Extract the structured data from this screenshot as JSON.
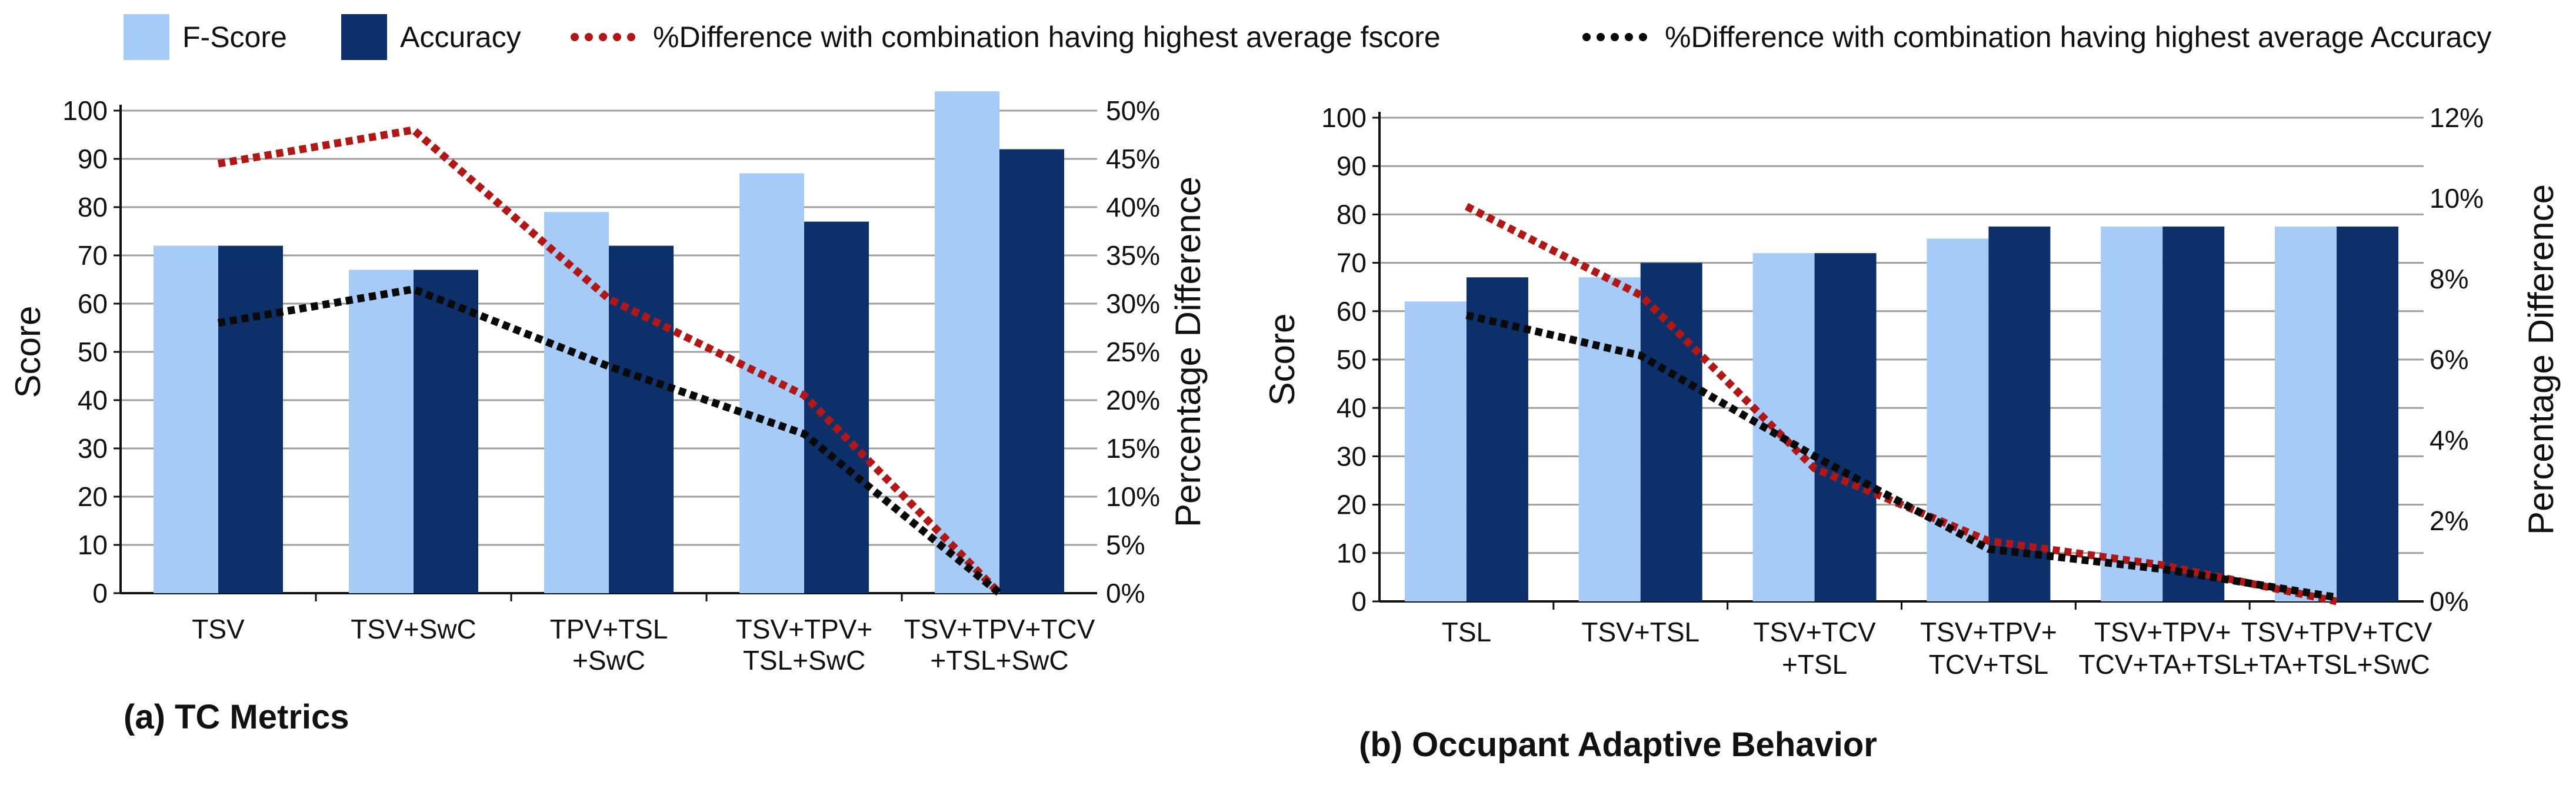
{
  "legend": {
    "fscore": "F-Score",
    "accuracy": "Accuracy",
    "diff_fscore": "%Difference with combination having highest average fscore",
    "diff_accuracy": "%Difference with combination having highest average Accuracy"
  },
  "colors": {
    "fscore": "#a6cbf6",
    "accuracy": "#0d306b",
    "diff_fscore": "#b01818",
    "diff_accuracy": "#0a0a0a",
    "grid": "#9e9e9e"
  },
  "chart_data": [
    {
      "type": "bar",
      "caption": "(a) TC Metrics",
      "ylabel": "Score",
      "y2label": "Percentage Difference",
      "ylim": [
        0,
        100
      ],
      "yticks": [
        "0",
        "10",
        "20",
        "30",
        "40",
        "50",
        "60",
        "70",
        "80",
        "90",
        "100"
      ],
      "y2lim": [
        0,
        50
      ],
      "y2ticks": [
        "0%",
        "5%",
        "10%",
        "15%",
        "20%",
        "25%",
        "30%",
        "35%",
        "40%",
        "45%",
        "50%"
      ],
      "categories": [
        [
          "TSV"
        ],
        [
          "TSV+SwC"
        ],
        [
          "TPV+TSL",
          "+SwC"
        ],
        [
          "TSV+TPV+",
          "TSL+SwC"
        ],
        [
          "TSV+TPV+TCV",
          "+TSL+SwC"
        ]
      ],
      "series": [
        {
          "name": "F-Score",
          "axis": "left",
          "values": [
            72,
            67,
            79,
            87,
            104
          ]
        },
        {
          "name": "Accuracy",
          "axis": "left",
          "values": [
            72,
            67,
            72,
            77,
            92
          ]
        },
        {
          "name": "%Difference with combination having highest average fscore",
          "axis": "right",
          "values": [
            44.5,
            48,
            30.5,
            20.5,
            0
          ]
        },
        {
          "name": "%Difference with combination having highest average Accuracy",
          "axis": "right",
          "values": [
            28,
            31.5,
            23.5,
            16.5,
            0
          ]
        }
      ]
    },
    {
      "type": "bar",
      "caption": "(b) Occupant Adaptive Behavior",
      "ylabel": "Score",
      "y2label": "Percentage Difference",
      "ylim": [
        0,
        100
      ],
      "yticks": [
        "0",
        "10",
        "20",
        "30",
        "40",
        "50",
        "60",
        "70",
        "80",
        "90",
        "100"
      ],
      "y2lim": [
        0,
        12
      ],
      "y2ticks": [
        "0%",
        "2%",
        "4%",
        "6%",
        "8%",
        "10%",
        "12%"
      ],
      "categories": [
        [
          "TSL"
        ],
        [
          "TSV+TSL"
        ],
        [
          "TSV+TCV",
          "+TSL"
        ],
        [
          "TSV+TPV+",
          "TCV+TSL"
        ],
        [
          "TSV+TPV+",
          "TCV+TA+TSL"
        ],
        [
          "TSV+TPV+TCV",
          "+TA+TSL+SwC"
        ]
      ],
      "series": [
        {
          "name": "F-Score",
          "axis": "left",
          "values": [
            62,
            67,
            72,
            75,
            77.5,
            77.5
          ]
        },
        {
          "name": "Accuracy",
          "axis": "left",
          "values": [
            67,
            70,
            72,
            77.5,
            77.5,
            77.5
          ]
        },
        {
          "name": "%Difference with combination having highest average fscore",
          "axis": "right",
          "values": [
            9.8,
            7.6,
            3.3,
            1.5,
            0.9,
            0
          ]
        },
        {
          "name": "%Difference with combination having highest average Accuracy",
          "axis": "right",
          "values": [
            7.1,
            6.1,
            3.6,
            1.3,
            0.8,
            0.1
          ]
        }
      ]
    }
  ]
}
